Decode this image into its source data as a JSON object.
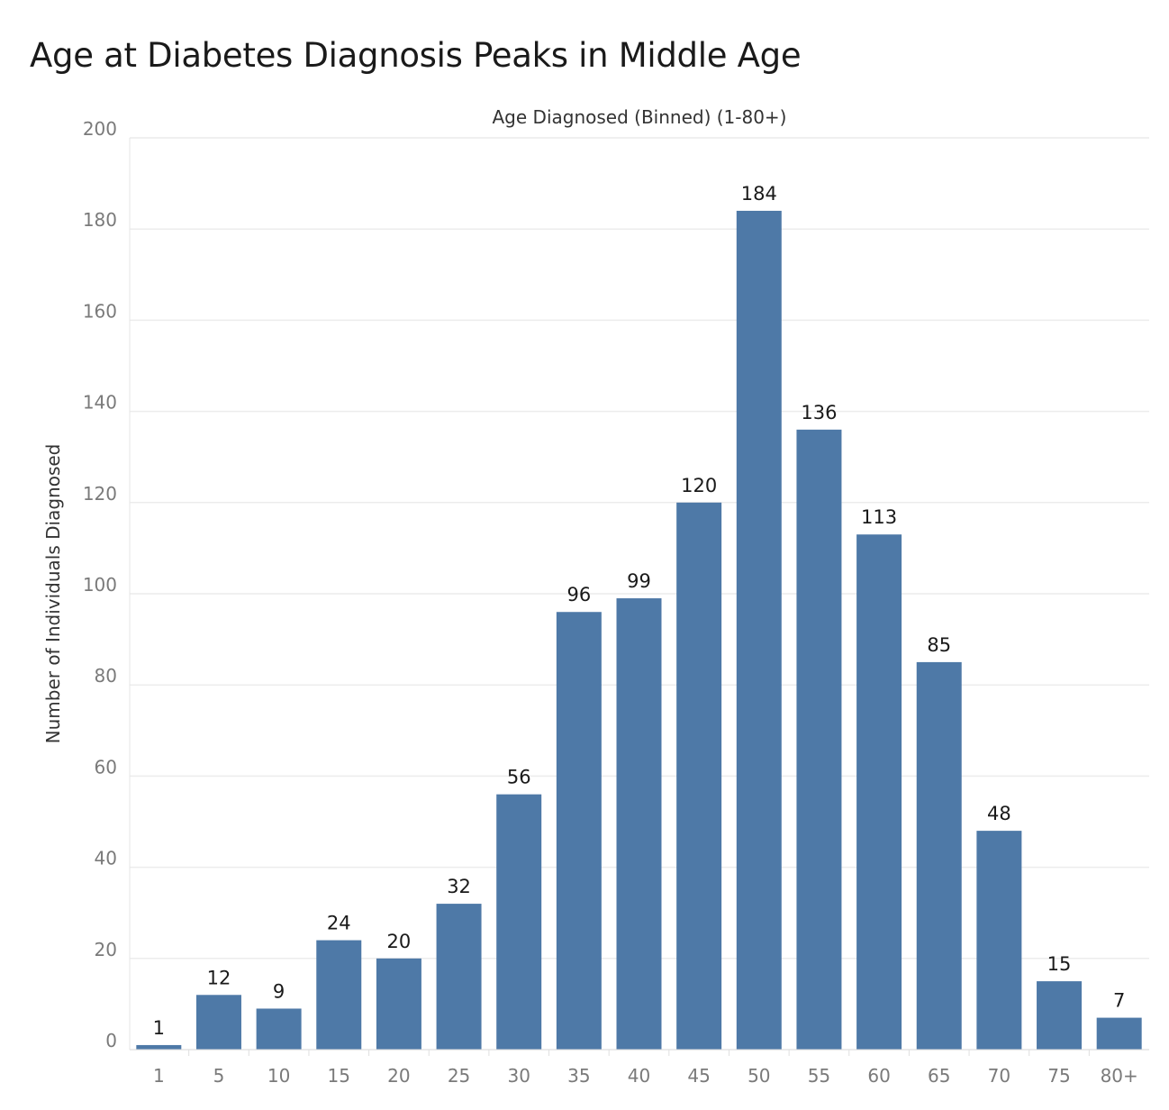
{
  "page": {
    "title": "Age at Diabetes Diagnosis Peaks in Middle Age"
  },
  "chart_data": {
    "type": "bar",
    "title": "Age at Diabetes Diagnosis Peaks in Middle Age",
    "xlabel": "Age Diagnosed (Binned) (1-80+)",
    "xlabel_position": "top",
    "ylabel": "Number of Individuals Diagnosed",
    "categories": [
      "1",
      "5",
      "10",
      "15",
      "20",
      "25",
      "30",
      "35",
      "40",
      "45",
      "50",
      "55",
      "60",
      "65",
      "70",
      "75",
      "80+"
    ],
    "values": [
      1,
      12,
      9,
      24,
      20,
      32,
      56,
      96,
      99,
      120,
      184,
      136,
      113,
      85,
      48,
      15,
      7
    ],
    "ylim": [
      0,
      200
    ],
    "yticks": [
      0,
      20,
      40,
      60,
      80,
      100,
      120,
      140,
      160,
      180,
      200
    ],
    "grid": true,
    "data_labels": true,
    "bar_color": "#4e79a7",
    "grid_color": "#ececec"
  }
}
